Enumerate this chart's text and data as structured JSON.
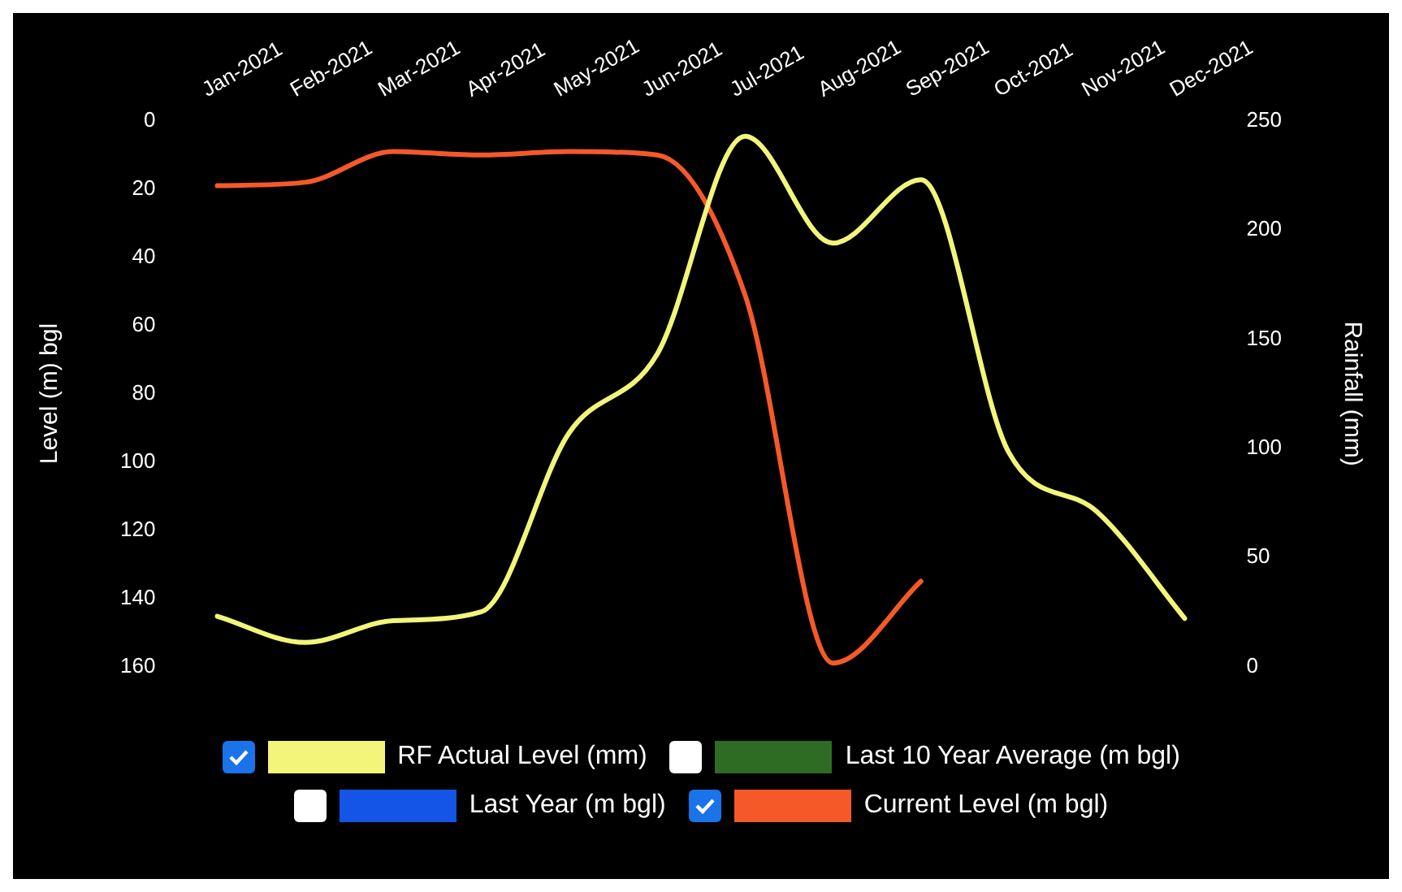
{
  "chart_data": {
    "type": "line",
    "categories": [
      "Jan-2021",
      "Feb-2021",
      "Mar-2021",
      "Apr-2021",
      "May-2021",
      "Jun-2021",
      "Jul-2021",
      "Aug-2021",
      "Sep-2021",
      "Oct-2021",
      "Nov-2021",
      "Dec-2021"
    ],
    "ylabel": "Level (m) bgl",
    "y2label": "Rainfall (mm)",
    "ylim": [
      160,
      0
    ],
    "yticks": [
      0,
      20,
      40,
      60,
      80,
      100,
      120,
      140,
      160
    ],
    "y2lim": [
      0,
      250
    ],
    "y2ticks": [
      0,
      50,
      100,
      150,
      200,
      250
    ],
    "grid": false,
    "legend": "bottom",
    "marker": "none",
    "line_style": "solid",
    "series": [
      {
        "name": "RF Actual Level (mm)",
        "color": "#f2f57a",
        "axis": "y2",
        "values": [
          23,
          11,
          21,
          25,
          107,
          143,
          243,
          194,
          223,
          98,
          71,
          22
        ]
      },
      {
        "name": "Last 10 Year Average (m bgl)",
        "color": "#2e6b23",
        "values": [
          null,
          null,
          null,
          null,
          null,
          null,
          null,
          null,
          null,
          null,
          null,
          null
        ]
      },
      {
        "name": "Last Year (m bgl)",
        "color": "#1454e6",
        "values": [
          null,
          null,
          null,
          null,
          null,
          null,
          null,
          null,
          null,
          null,
          null,
          null
        ]
      },
      {
        "name": "Current Level (m bgl)",
        "color": "#f5592a",
        "values": [
          19,
          18,
          9,
          10,
          9,
          10,
          51,
          159,
          135,
          null,
          null,
          null
        ]
      }
    ]
  }
}
